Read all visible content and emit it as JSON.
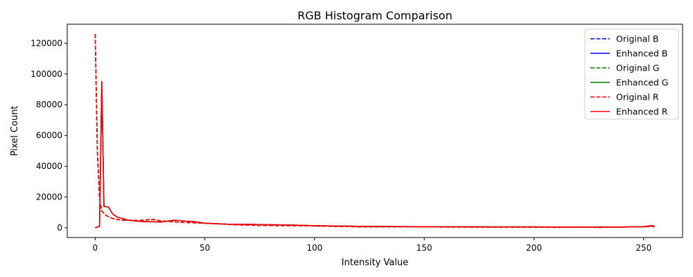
{
  "chart_data": {
    "type": "line",
    "title": "RGB Histogram Comparison",
    "xlabel": "Intensity Value",
    "ylabel": "Pixel Count",
    "xlim": [
      -12.75,
      267.75
    ],
    "ylim": [
      -6300,
      132300
    ],
    "xticks": [
      0,
      50,
      100,
      150,
      200,
      250
    ],
    "yticks": [
      0,
      20000,
      40000,
      60000,
      80000,
      100000,
      120000
    ],
    "grid": false,
    "legend_position": "top-right",
    "series": [
      {
        "name": "Original B",
        "color": "#0000ff",
        "dash": "dashed",
        "x": [
          0,
          1,
          2,
          3,
          5,
          8,
          12,
          20,
          26,
          30,
          40,
          50,
          60,
          70,
          80,
          90,
          100,
          110,
          120,
          130,
          150,
          170,
          190,
          200,
          210,
          220,
          230,
          240,
          250,
          253,
          255
        ],
        "y": [
          126000,
          50000,
          19000,
          11000,
          8000,
          6000,
          5000,
          4800,
          5500,
          4500,
          3500,
          3000,
          2300,
          1700,
          1500,
          1400,
          1200,
          900,
          700,
          700,
          600,
          500,
          500,
          400,
          300,
          400,
          300,
          500,
          700,
          900,
          700
        ]
      },
      {
        "name": "Enhanced B",
        "color": "#0000ff",
        "dash": "solid",
        "x": [
          0,
          2,
          3,
          4,
          6,
          8,
          10,
          15,
          20,
          30,
          36,
          40,
          45,
          50,
          60,
          70,
          80,
          90,
          100,
          120,
          150,
          180,
          200,
          220,
          240,
          250,
          254,
          255
        ],
        "y": [
          0,
          1000,
          95000,
          14000,
          13500,
          9000,
          7000,
          5000,
          4200,
          3800,
          5000,
          4500,
          4000,
          3000,
          2400,
          2200,
          2000,
          1800,
          1400,
          1000,
          700,
          600,
          600,
          500,
          500,
          800,
          1500,
          600
        ]
      },
      {
        "name": "Original G",
        "color": "#008000",
        "dash": "dashed",
        "x": [
          0,
          1,
          2,
          3,
          5,
          8,
          12,
          20,
          26,
          30,
          40,
          50,
          60,
          70,
          80,
          90,
          100,
          110,
          120,
          130,
          150,
          170,
          190,
          200,
          210,
          220,
          230,
          240,
          250,
          253,
          255
        ],
        "y": [
          126000,
          50000,
          19000,
          11000,
          8000,
          6000,
          5000,
          4800,
          5500,
          4500,
          3500,
          3000,
          2300,
          1700,
          1500,
          1400,
          1200,
          900,
          700,
          700,
          600,
          500,
          500,
          400,
          300,
          400,
          300,
          500,
          700,
          900,
          700
        ]
      },
      {
        "name": "Enhanced G",
        "color": "#008000",
        "dash": "solid",
        "x": [
          0,
          2,
          3,
          4,
          6,
          8,
          10,
          15,
          20,
          30,
          36,
          40,
          45,
          50,
          60,
          70,
          80,
          90,
          100,
          120,
          150,
          180,
          200,
          220,
          240,
          250,
          254,
          255
        ],
        "y": [
          0,
          1000,
          95000,
          14000,
          13500,
          9000,
          7000,
          5000,
          4200,
          3800,
          5000,
          4500,
          4000,
          3000,
          2400,
          2200,
          2000,
          1800,
          1400,
          1000,
          700,
          600,
          600,
          500,
          500,
          800,
          1500,
          600
        ]
      },
      {
        "name": "Original R",
        "color": "#ff0000",
        "dash": "dashed",
        "x": [
          0,
          1,
          2,
          3,
          5,
          8,
          12,
          20,
          26,
          30,
          40,
          50,
          60,
          70,
          80,
          90,
          100,
          110,
          120,
          130,
          150,
          170,
          190,
          200,
          210,
          220,
          230,
          240,
          250,
          253,
          255
        ],
        "y": [
          126000,
          50000,
          19000,
          11000,
          8000,
          6000,
          5000,
          4800,
          5500,
          4500,
          3500,
          3000,
          2300,
          1700,
          1500,
          1400,
          1200,
          900,
          700,
          700,
          600,
          500,
          500,
          400,
          300,
          400,
          300,
          500,
          700,
          900,
          700
        ]
      },
      {
        "name": "Enhanced R",
        "color": "#ff0000",
        "dash": "solid",
        "x": [
          0,
          2,
          3,
          4,
          6,
          8,
          10,
          15,
          20,
          30,
          36,
          40,
          45,
          50,
          60,
          70,
          80,
          90,
          100,
          120,
          150,
          180,
          200,
          220,
          240,
          250,
          254,
          255
        ],
        "y": [
          0,
          1000,
          95000,
          14000,
          13500,
          9000,
          7000,
          5000,
          4200,
          3800,
          5000,
          4500,
          4000,
          3000,
          2400,
          2200,
          2000,
          1800,
          1400,
          1000,
          700,
          600,
          600,
          500,
          500,
          800,
          1500,
          600
        ]
      }
    ]
  }
}
